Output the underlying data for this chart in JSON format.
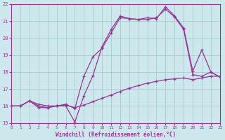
{
  "xlabel": "Windchill (Refroidissement éolien,°C)",
  "xlim": [
    0,
    23
  ],
  "ylim": [
    15,
    22
  ],
  "xticks": [
    0,
    1,
    2,
    3,
    4,
    5,
    6,
    7,
    8,
    9,
    10,
    11,
    12,
    13,
    14,
    15,
    16,
    17,
    18,
    19,
    20,
    21,
    22,
    23
  ],
  "yticks": [
    15,
    16,
    17,
    18,
    19,
    20,
    21,
    22
  ],
  "background_color": "#cce8ec",
  "grid_color": "#aacccc",
  "line_color": "#993399",
  "line1_x": [
    0,
    1,
    2,
    3,
    4,
    5,
    6,
    7,
    8,
    9,
    10,
    11,
    12,
    13,
    14,
    15,
    16,
    17,
    18,
    19,
    20,
    21,
    22,
    23
  ],
  "line1_y": [
    16.0,
    16.0,
    16.3,
    15.9,
    15.9,
    16.0,
    16.0,
    15.05,
    16.6,
    17.8,
    19.5,
    20.5,
    21.3,
    21.15,
    21.1,
    21.2,
    21.15,
    21.85,
    21.3,
    20.6,
    18.05,
    19.3,
    18.0,
    17.7
  ],
  "line2_x": [
    0,
    1,
    2,
    3,
    4,
    5,
    6,
    7,
    8,
    9,
    10,
    11,
    12,
    13,
    14,
    15,
    16,
    17,
    18,
    19,
    20,
    21,
    22,
    23
  ],
  "line2_y": [
    16.0,
    16.0,
    16.3,
    16.0,
    15.9,
    16.0,
    16.1,
    15.85,
    17.75,
    18.9,
    19.4,
    20.3,
    21.2,
    21.15,
    21.1,
    21.1,
    21.2,
    21.7,
    21.25,
    20.5,
    17.85,
    17.75,
    18.0,
    17.7
  ],
  "line3_x": [
    0,
    1,
    2,
    3,
    4,
    5,
    6,
    7,
    8,
    9,
    10,
    11,
    12,
    13,
    14,
    15,
    16,
    17,
    18,
    19,
    20,
    21,
    22,
    23
  ],
  "line3_y": [
    16.0,
    16.0,
    16.3,
    16.1,
    16.0,
    16.0,
    16.05,
    15.9,
    16.05,
    16.25,
    16.45,
    16.65,
    16.85,
    17.05,
    17.2,
    17.35,
    17.45,
    17.55,
    17.6,
    17.65,
    17.55,
    17.65,
    17.75,
    17.75
  ]
}
